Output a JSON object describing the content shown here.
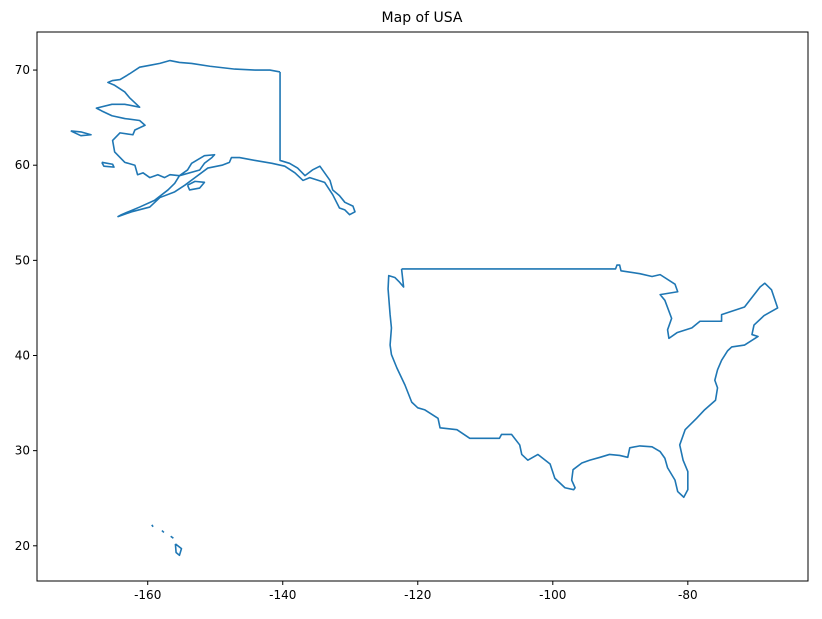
{
  "chart_data": {
    "type": "line",
    "title": "Map of USA",
    "color": "#1f77b4",
    "xlim": [
      -176.4,
      -62.2
    ],
    "ylim": [
      16.3,
      74.0
    ],
    "xticks": [
      -160,
      -140,
      -120,
      -100,
      -80
    ],
    "yticks": [
      20,
      30,
      40,
      50,
      60,
      70
    ],
    "x": [
      -122.4,
      -90.7,
      -90.5,
      -90.1,
      -89.9,
      -87.1,
      -85.3,
      -84.1,
      -81.9,
      -81.5,
      -84.1,
      -83.4,
      -82.4,
      -83.0,
      -82.8,
      -81.6,
      -79.4,
      -78.2,
      -75.0,
      -75.0,
      -71.6,
      -69.3,
      -68.6,
      -67.6,
      -66.7,
      -68.7,
      -70.2,
      -70.5,
      -69.6,
      -71.6,
      -73.5,
      -74.1,
      -75.0,
      -75.6,
      -76.0,
      -75.6,
      -75.9,
      -77.5,
      -78.7,
      -80.4,
      -81.2,
      -80.7,
      -80.0,
      -80.0,
      -80.6,
      -81.5,
      -81.9,
      -83.0,
      -83.4,
      -84.1,
      -85.3,
      -87.1,
      -88.6,
      -88.9,
      -90.1,
      -91.6,
      -93.0,
      -94.5,
      -95.7,
      -97.0,
      -97.2,
      -96.7,
      -96.9,
      -98.2,
      -99.7,
      -100.4,
      -102.2,
      -103.7,
      -104.6,
      -104.9,
      -106.1,
      -107.6,
      -107.9,
      -112.3,
      -114.2,
      -116.7,
      -117.0,
      -119.0,
      -120.0,
      -120.9,
      -121.9,
      -123.1,
      -123.9,
      -124.1,
      -123.9,
      -124.1,
      -124.4,
      -124.3,
      -123.4,
      -122.7,
      -122.1,
      -122.4,
      null,
      -140.4,
      -140.4,
      -139.0,
      -137.8,
      -136.7,
      -135.6,
      -134.5,
      -133.0,
      -132.6,
      -131.6,
      -130.8,
      -129.6,
      -129.3,
      -130.1,
      -130.8,
      -131.6,
      -132.6,
      -133.8,
      -136.0,
      -137.0,
      -138.2,
      -139.7,
      -141.6,
      -144.1,
      -146.4,
      -147.6,
      -147.9,
      -149.0,
      -151.1,
      -153.0,
      -154.5,
      -156.0,
      -158.2,
      -159.7,
      -162.4,
      -164.4,
      -163.9,
      -161.2,
      -159.0,
      -157.0,
      -156.0,
      -155.3,
      -154.1,
      -153.5,
      -151.6,
      -150.1,
      -150.5,
      -151.6,
      -152.3,
      -155.3,
      -156.7,
      -157.5,
      -158.5,
      -159.7,
      -160.7,
      -161.5,
      -161.9,
      -163.4,
      -164.9,
      -165.2,
      -164.1,
      -162.2,
      -161.9,
      -160.4,
      -161.2,
      -163.4,
      -165.3,
      -166.8,
      -167.6,
      -165.3,
      -163.4,
      -161.2,
      -162.7,
      -163.4,
      -164.9,
      -165.9,
      -165.2,
      -164.1,
      -162.7,
      -161.2,
      -159.7,
      -158.2,
      -156.7,
      -155.3,
      -153.5,
      -150.8,
      -147.1,
      -144.1,
      -141.9,
      -140.4,
      null,
      -154.1,
      -153.0,
      -151.6,
      -152.3,
      -153.8,
      -154.1,
      null,
      -171.4,
      -169.9,
      -168.4,
      -169.9,
      -171.4,
      null,
      -166.8,
      -165.2,
      -165.0,
      -166.5,
      -166.8,
      null,
      -159.4,
      -159.2,
      null,
      -157.9,
      -157.6,
      null,
      -156.6,
      -156.2,
      null,
      -155.9,
      -155.0,
      -155.3,
      -155.8,
      -155.9
    ],
    "y": [
      49.1,
      49.1,
      49.5,
      49.5,
      48.9,
      48.6,
      48.3,
      48.5,
      47.5,
      46.7,
      46.4,
      45.8,
      43.9,
      42.7,
      41.8,
      42.4,
      42.9,
      43.6,
      43.6,
      44.3,
      45.1,
      47.2,
      47.6,
      46.9,
      45.0,
      44.2,
      43.2,
      42.2,
      42.0,
      41.1,
      40.9,
      40.5,
      39.5,
      38.5,
      37.4,
      36.6,
      35.3,
      34.3,
      33.4,
      32.2,
      30.6,
      29.0,
      27.8,
      25.9,
      25.1,
      25.7,
      26.9,
      28.2,
      29.2,
      29.9,
      30.4,
      30.5,
      30.3,
      29.3,
      29.5,
      29.6,
      29.3,
      29.0,
      28.7,
      28.0,
      26.9,
      26.1,
      25.9,
      26.1,
      27.1,
      28.6,
      29.6,
      29.0,
      29.6,
      30.6,
      31.7,
      31.7,
      31.3,
      31.3,
      32.2,
      32.4,
      33.4,
      34.3,
      34.5,
      35.1,
      36.9,
      38.7,
      40.1,
      41.1,
      42.9,
      44.3,
      47.0,
      48.4,
      48.2,
      47.7,
      47.2,
      49.1,
      null,
      69.8,
      60.5,
      60.2,
      59.7,
      58.9,
      59.5,
      59.9,
      58.4,
      57.4,
      56.8,
      56.1,
      55.7,
      55.1,
      54.8,
      55.3,
      55.5,
      56.9,
      58.2,
      58.7,
      58.4,
      59.2,
      59.9,
      60.2,
      60.5,
      60.8,
      60.8,
      60.3,
      60.0,
      59.7,
      58.7,
      57.9,
      57.2,
      56.6,
      55.6,
      55.1,
      54.6,
      54.8,
      55.6,
      56.3,
      57.4,
      58.1,
      58.9,
      59.5,
      60.2,
      61.0,
      61.1,
      60.8,
      60.2,
      59.5,
      58.9,
      59.0,
      58.7,
      59.0,
      58.7,
      59.2,
      59.0,
      60.0,
      60.3,
      61.4,
      62.6,
      63.4,
      63.2,
      63.7,
      64.2,
      64.7,
      64.9,
      65.2,
      65.7,
      66.0,
      66.4,
      66.4,
      66.1,
      67.1,
      67.7,
      68.4,
      68.7,
      68.9,
      69.0,
      69.6,
      70.3,
      70.5,
      70.7,
      71.0,
      70.8,
      70.7,
      70.4,
      70.1,
      70.0,
      70.0,
      69.8,
      null,
      57.9,
      58.3,
      58.2,
      57.6,
      57.4,
      57.9,
      null,
      63.6,
      63.5,
      63.2,
      63.1,
      63.6,
      null,
      60.3,
      60.1,
      59.8,
      59.9,
      60.3,
      null,
      22.2,
      22.0,
      null,
      21.6,
      21.4,
      null,
      21.0,
      20.8,
      null,
      20.2,
      19.7,
      19.0,
      19.3,
      20.2
    ]
  }
}
